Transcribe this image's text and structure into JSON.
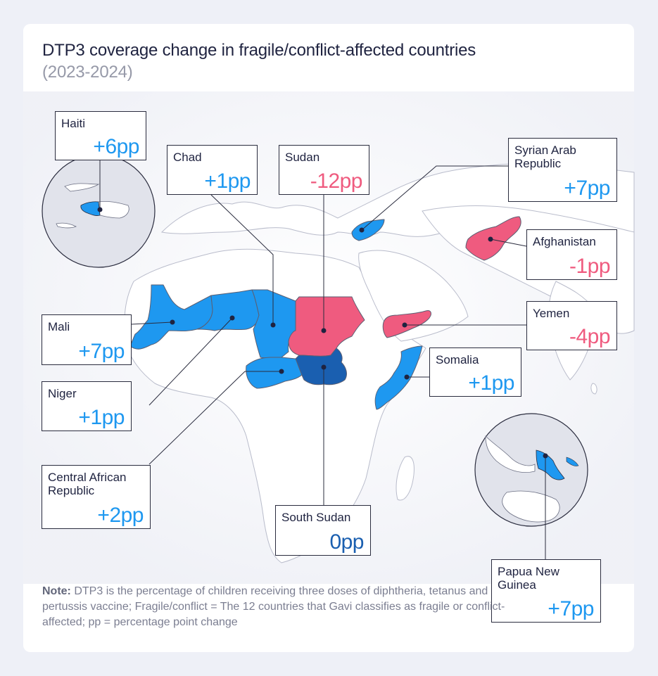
{
  "title": "DTP3 coverage change in fragile/conflict-affected countries",
  "subtitle": "(2023-2024)",
  "colors": {
    "increase": "#1e98f0",
    "decrease": "#ef5b7f",
    "no_change": "#1a5fb0",
    "land": "#ffffff",
    "border": "#5b5f73",
    "inset_fill": "#e1e3eb"
  },
  "countries": {
    "haiti": {
      "name": "Haiti",
      "change": "+6pp",
      "value": 6
    },
    "chad": {
      "name": "Chad",
      "change": "+1pp",
      "value": 1
    },
    "sudan": {
      "name": "Sudan",
      "change": "-12pp",
      "value": -12
    },
    "syria": {
      "name": "Syrian Arab Republic",
      "change": "+7pp",
      "value": 7
    },
    "afghanistan": {
      "name": "Afghanistan",
      "change": "-1pp",
      "value": -1
    },
    "yemen": {
      "name": "Yemen",
      "change": "-4pp",
      "value": -4
    },
    "mali": {
      "name": "Mali",
      "change": "+7pp",
      "value": 7
    },
    "somalia": {
      "name": "Somalia",
      "change": "+1pp",
      "value": 1
    },
    "niger": {
      "name": "Niger",
      "change": "+1pp",
      "value": 1
    },
    "car": {
      "name": "Central African Republic",
      "change": "+2pp",
      "value": 2
    },
    "south_sudan": {
      "name": "South Sudan",
      "change": "0pp",
      "value": 0
    },
    "png": {
      "name": "Papua New Guinea",
      "change": "+7pp",
      "value": 7
    }
  },
  "note": {
    "label": "Note:",
    "text": "DTP3 is the percentage of children receiving three doses of diphtheria, tetanus and pertussis vaccine;  Fragile/conflict = The 12 countries that Gavi classifies as fragile or conflict-affected; pp = percentage point change"
  }
}
